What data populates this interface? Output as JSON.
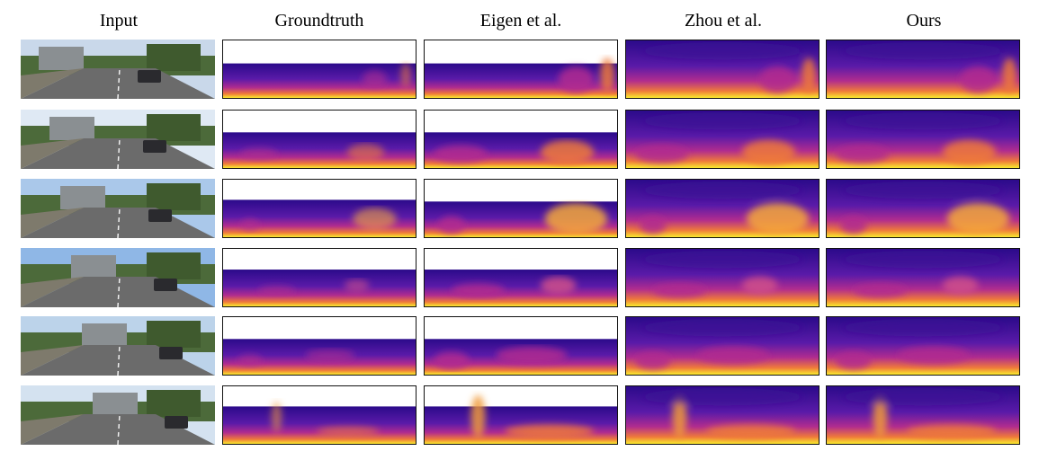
{
  "columns": [
    {
      "key": "input",
      "label": "Input"
    },
    {
      "key": "gt",
      "label": "Groundtruth"
    },
    {
      "key": "eigen",
      "label": "Eigen et al."
    },
    {
      "key": "zhou",
      "label": "Zhou et al."
    },
    {
      "key": "ours",
      "label": "Ours"
    }
  ],
  "rows": 6,
  "colors": {
    "depth_far": "#2b0a8a",
    "depth_mid": "#b02c8f",
    "depth_near": "#f9ea2e",
    "sky": "#8fb7e6",
    "road": "#6b6b6b"
  }
}
